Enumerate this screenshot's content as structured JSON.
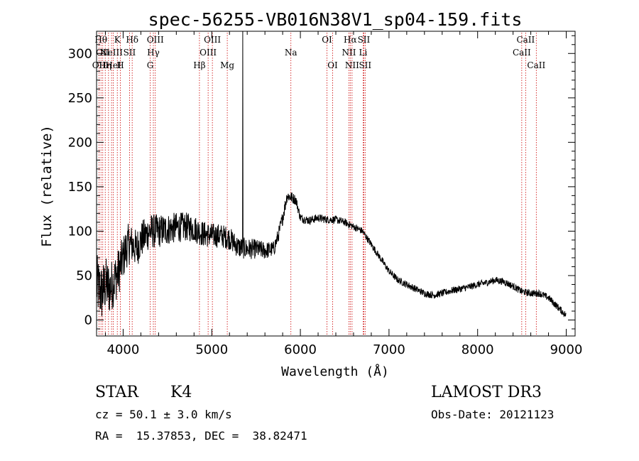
{
  "chart_data": {
    "type": "line",
    "title": "spec-56255-VB016N38V1_sp04-159.fits",
    "xlabel": "Wavelength (Å)",
    "ylabel": "Flux (relative)",
    "xlim": [
      3700,
      9100
    ],
    "ylim": [
      -18,
      325
    ],
    "xticks": [
      4000,
      5000,
      6000,
      7000,
      8000,
      9000
    ],
    "yticks": [
      0,
      50,
      100,
      150,
      200,
      250,
      300
    ],
    "trend": [
      [
        3700,
        40
      ],
      [
        3760,
        30
      ],
      [
        3800,
        40
      ],
      [
        3850,
        35
      ],
      [
        3900,
        45
      ],
      [
        3950,
        55
      ],
      [
        4000,
        70
      ],
      [
        4050,
        85
      ],
      [
        4100,
        85
      ],
      [
        4150,
        80
      ],
      [
        4200,
        90
      ],
      [
        4300,
        100
      ],
      [
        4400,
        100
      ],
      [
        4500,
        102
      ],
      [
        4600,
        104
      ],
      [
        4700,
        105
      ],
      [
        4800,
        103
      ],
      [
        4900,
        97
      ],
      [
        5000,
        95
      ],
      [
        5100,
        95
      ],
      [
        5200,
        92
      ],
      [
        5300,
        82
      ],
      [
        5400,
        80
      ],
      [
        5500,
        80
      ],
      [
        5600,
        78
      ],
      [
        5700,
        80
      ],
      [
        5750,
        95
      ],
      [
        5800,
        115
      ],
      [
        5850,
        140
      ],
      [
        5900,
        138
      ],
      [
        5950,
        135
      ],
      [
        6000,
        115
      ],
      [
        6100,
        112
      ],
      [
        6200,
        115
      ],
      [
        6300,
        113
      ],
      [
        6400,
        113
      ],
      [
        6500,
        110
      ],
      [
        6600,
        105
      ],
      [
        6700,
        100
      ],
      [
        6800,
        85
      ],
      [
        6900,
        70
      ],
      [
        7000,
        55
      ],
      [
        7100,
        45
      ],
      [
        7200,
        40
      ],
      [
        7300,
        35
      ],
      [
        7400,
        30
      ],
      [
        7500,
        28
      ],
      [
        7600,
        30
      ],
      [
        7700,
        33
      ],
      [
        7800,
        35
      ],
      [
        7900,
        37
      ],
      [
        8000,
        40
      ],
      [
        8100,
        42
      ],
      [
        8200,
        45
      ],
      [
        8300,
        43
      ],
      [
        8400,
        38
      ],
      [
        8500,
        32
      ],
      [
        8600,
        30
      ],
      [
        8700,
        30
      ],
      [
        8800,
        25
      ],
      [
        8900,
        15
      ],
      [
        9000,
        5
      ]
    ],
    "noise_amplitude": [
      [
        3700,
        35
      ],
      [
        4100,
        22
      ],
      [
        4500,
        18
      ],
      [
        5000,
        14
      ],
      [
        5400,
        12
      ],
      [
        5800,
        8
      ],
      [
        6000,
        5
      ],
      [
        6600,
        4
      ],
      [
        7000,
        4
      ],
      [
        9000,
        4
      ]
    ],
    "spike": {
      "x": 5350,
      "y": 325
    },
    "emission_lines": [
      {
        "x": 3727,
        "label": "OII",
        "row": 3
      },
      {
        "x": 3750,
        "label": "Hθ",
        "row": 1
      },
      {
        "x": 3770,
        "label": "OII",
        "row": 2
      },
      {
        "x": 3798,
        "label": "Hη",
        "row": 3
      },
      {
        "x": 3835,
        "label": "Hζ",
        "row": 0
      },
      {
        "x": 3869,
        "label": "NeIII",
        "row": 2
      },
      {
        "x": 3889,
        "label": "HeI",
        "row": 3
      },
      {
        "x": 3934,
        "label": "K",
        "row": 1
      },
      {
        "x": 3968,
        "label": "H",
        "row": 3
      },
      {
        "x": 4072,
        "label": "SII",
        "row": 2
      },
      {
        "x": 4102,
        "label": "Hδ",
        "row": 1
      },
      {
        "x": 4305,
        "label": "G",
        "row": 3
      },
      {
        "x": 4341,
        "label": "Hγ",
        "row": 2
      },
      {
        "x": 4363,
        "label": "OIII",
        "row": 1
      },
      {
        "x": 4861,
        "label": "Hβ",
        "row": 3
      },
      {
        "x": 4959,
        "label": "OIII",
        "row": 2
      },
      {
        "x": 5007,
        "label": "OIII",
        "row": 1
      },
      {
        "x": 5175,
        "label": "Mg",
        "row": 3
      },
      {
        "x": 5893,
        "label": "Na",
        "row": 2
      },
      {
        "x": 6300,
        "label": "OI",
        "row": 1
      },
      {
        "x": 6364,
        "label": "OI",
        "row": 3
      },
      {
        "x": 6548,
        "label": "NII",
        "row": 2
      },
      {
        "x": 6563,
        "label": "Hα",
        "row": 1
      },
      {
        "x": 6583,
        "label": "NII",
        "row": 3
      },
      {
        "x": 6708,
        "label": "Li",
        "row": 2
      },
      {
        "x": 6716,
        "label": "SII",
        "row": 1
      },
      {
        "x": 6731,
        "label": "SII",
        "row": 3
      },
      {
        "x": 8498,
        "label": "CaII",
        "row": 2
      },
      {
        "x": 8542,
        "label": "CaII",
        "row": 1
      },
      {
        "x": 8662,
        "label": "CaII",
        "row": 3
      }
    ]
  },
  "info": {
    "object_class": "STAR",
    "subclass": "K4",
    "survey": "LAMOST DR3",
    "cz": "cz = 50.1 ± 3.0 km/s",
    "obs_date": "Obs-Date: 20121123",
    "radec": "RA =  15.37853, DEC =  38.82471"
  },
  "colors": {
    "axis": "#000000",
    "spectrum": "#000000",
    "line_marker": "#cc0000",
    "background": "#ffffff"
  }
}
